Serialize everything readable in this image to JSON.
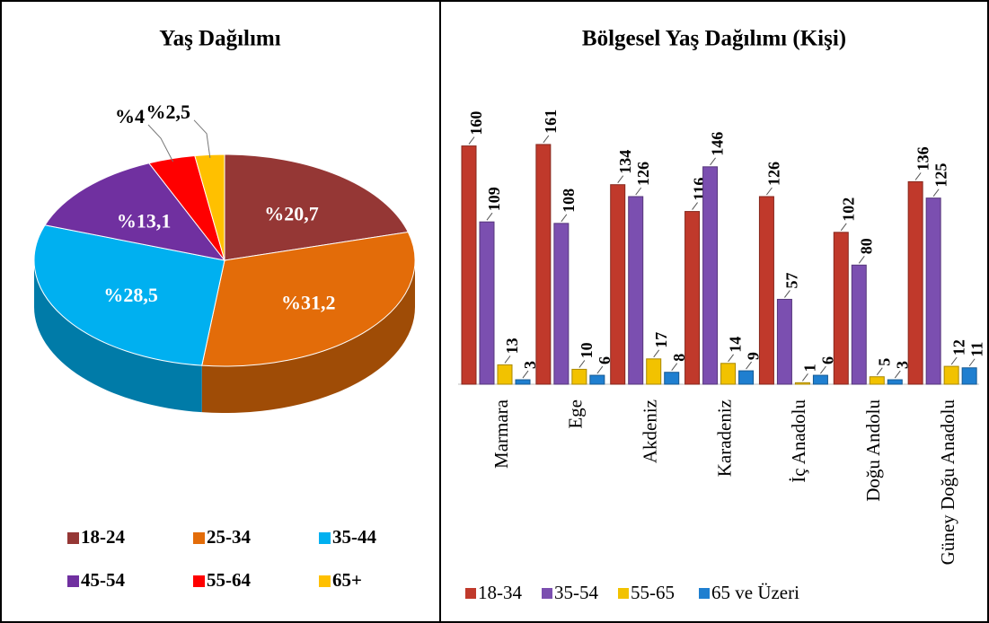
{
  "chart_data": [
    {
      "type": "pie",
      "title": "Yaş Dağılımı",
      "categories": [
        "18-24",
        "25-34",
        "35-44",
        "45-54",
        "55-64",
        "65+"
      ],
      "values": [
        20.7,
        31.2,
        28.5,
        13.1,
        4,
        2.5
      ],
      "value_labels": [
        "%20,7",
        "%31,2",
        "%28,5",
        "%13,1",
        "%4",
        "%2,5"
      ],
      "colors": [
        "#953735",
        "#e36c09",
        "#00b0f0",
        "#7030a0",
        "#ff0000",
        "#ffc000"
      ]
    },
    {
      "type": "bar",
      "title": "Bölgesel Yaş Dağılımı (Kişi)",
      "categories": [
        "Marmara",
        "Ege",
        "Akdeniz",
        "Karadeniz",
        "İç Anadolu",
        "Doğu Andolu",
        "Güney Doğu Anadolu"
      ],
      "series": [
        {
          "name": "18-34",
          "color": "#c0392b",
          "values": [
            160,
            161,
            134,
            116,
            126,
            102,
            136
          ]
        },
        {
          "name": "35-54",
          "color": "#7b4fb0",
          "values": [
            109,
            108,
            126,
            146,
            57,
            80,
            125
          ]
        },
        {
          "name": "55-65",
          "color": "#f2c200",
          "values": [
            13,
            10,
            17,
            14,
            1,
            5,
            12
          ]
        },
        {
          "name": "65 ve Üzeri",
          "color": "#1f7fd0",
          "values": [
            3,
            6,
            8,
            9,
            6,
            3,
            11
          ]
        }
      ],
      "ylim": [
        0,
        170
      ]
    }
  ]
}
